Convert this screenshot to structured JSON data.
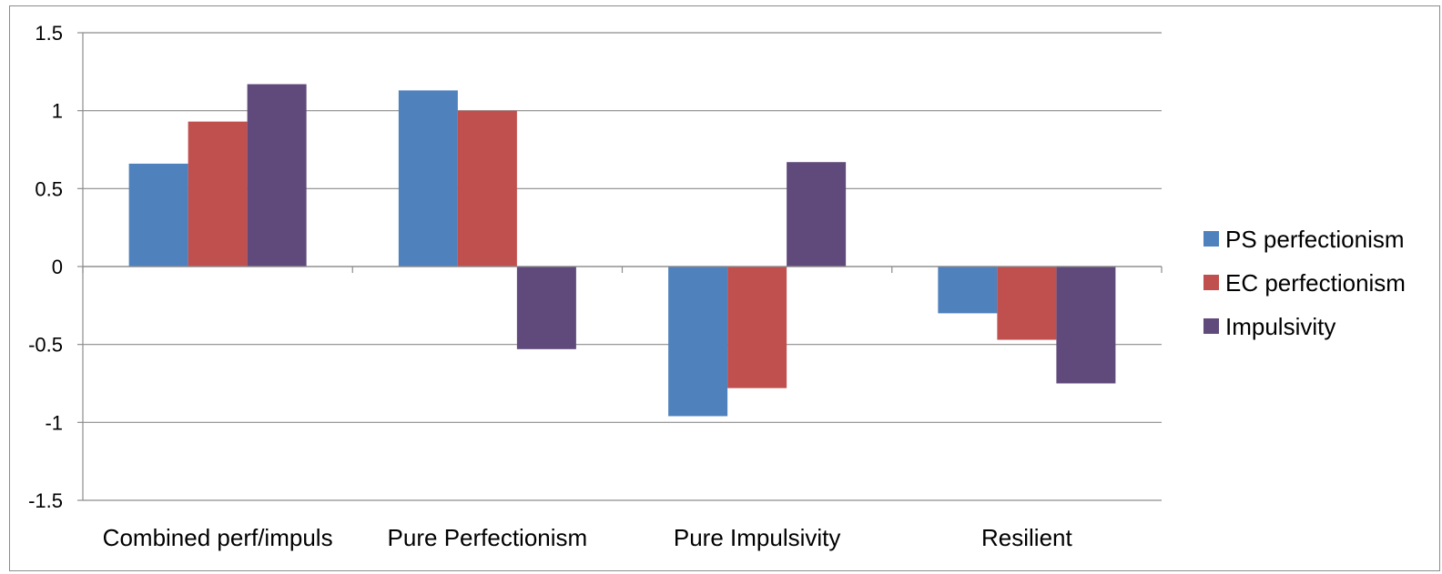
{
  "chart_data": {
    "type": "bar",
    "title": "",
    "xlabel": "",
    "ylabel": "",
    "categories": [
      "Combined perf/impuls",
      "Pure Perfectionism",
      "Pure Impulsivity",
      "Resilient"
    ],
    "series": [
      {
        "name": "PS perfectionism",
        "color": "#4F81BD",
        "values": [
          0.66,
          1.13,
          -0.96,
          -0.3
        ]
      },
      {
        "name": "EC perfectionism",
        "color": "#C0504D",
        "values": [
          0.93,
          1.0,
          -0.78,
          -0.47
        ]
      },
      {
        "name": "Impulsivity",
        "color": "#604A7B",
        "values": [
          1.17,
          -0.53,
          0.67,
          -0.75
        ]
      }
    ],
    "ylim": [
      -1.5,
      1.5
    ],
    "yticks": [
      "1.5",
      "1",
      "0.5",
      "0",
      "-0.5",
      "-1",
      "-1.5"
    ],
    "ytick_values": [
      1.5,
      1,
      0.5,
      0,
      -0.5,
      -1,
      -1.5
    ],
    "grid": true,
    "legend_position": "right"
  }
}
